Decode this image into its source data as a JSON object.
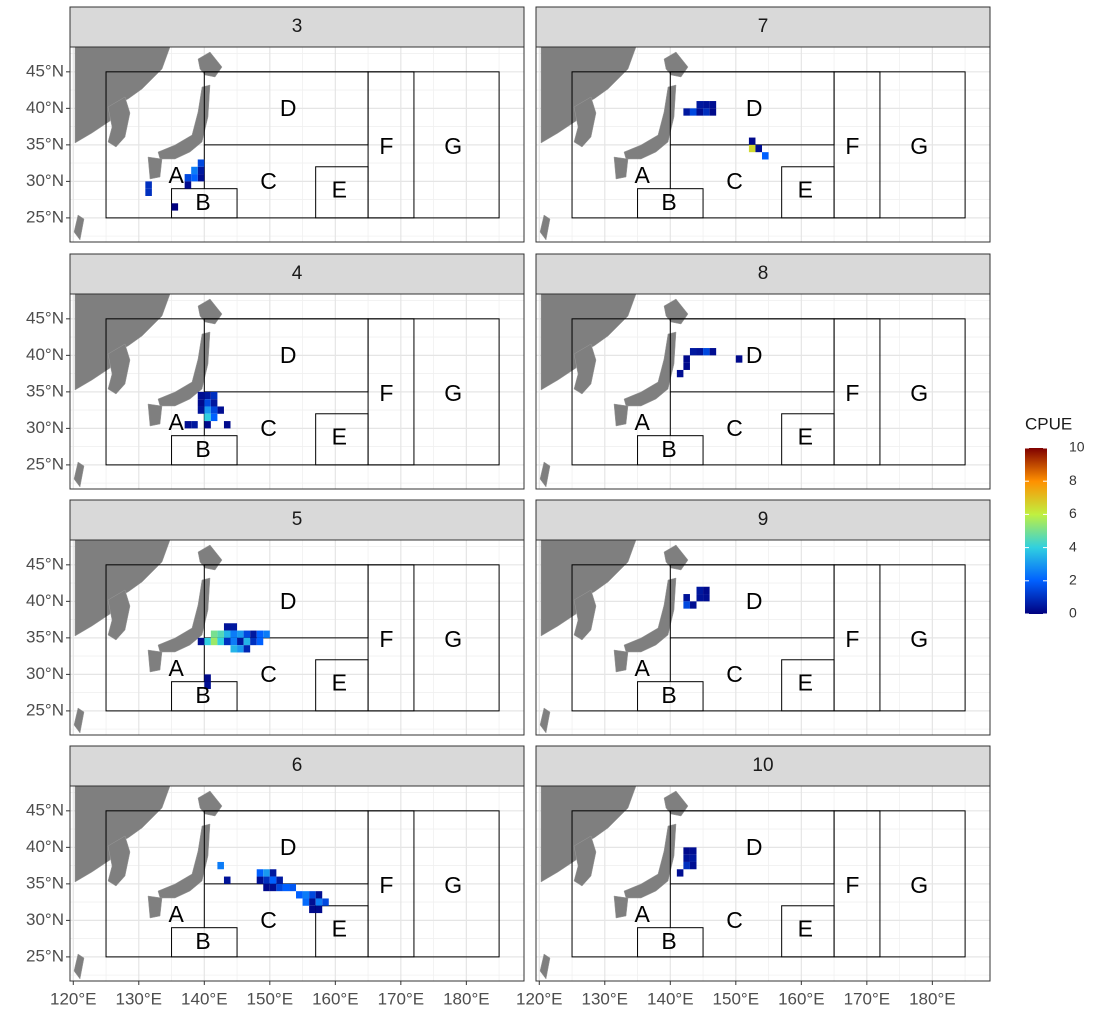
{
  "chart_data": {
    "type": "heatmap-map",
    "xlim": [
      119.5,
      188.8
    ],
    "ylim": [
      21.7,
      48.4
    ],
    "xticks": [
      {
        "value": 120,
        "label": "120°E"
      },
      {
        "value": 130,
        "label": "130°E"
      },
      {
        "value": 140,
        "label": "140°E"
      },
      {
        "value": 150,
        "label": "150°E"
      },
      {
        "value": 160,
        "label": "160°E"
      },
      {
        "value": 170,
        "label": "170°E"
      },
      {
        "value": 180,
        "label": "180°E"
      }
    ],
    "yticks": [
      {
        "value": 25,
        "label": "25°N"
      },
      {
        "value": 30,
        "label": "30°N"
      },
      {
        "value": 35,
        "label": "35°N"
      },
      {
        "value": 40,
        "label": "40°N"
      },
      {
        "value": 45,
        "label": "45°N"
      }
    ],
    "grid": true,
    "boundary_boxes": [
      [
        125,
        185,
        25,
        45
      ],
      [
        140,
        165,
        35,
        45
      ],
      [
        165,
        172,
        25,
        45
      ],
      [
        157,
        165,
        25,
        32
      ],
      [
        135,
        145,
        25,
        29
      ]
    ],
    "boundary_lines": [
      [
        140,
        29,
        140,
        35
      ]
    ],
    "region_labels": [
      {
        "label": "A",
        "lon": 135.7,
        "lat": 30.6
      },
      {
        "label": "B",
        "lon": 139.8,
        "lat": 26.9
      },
      {
        "label": "C",
        "lon": 149.8,
        "lat": 29.8
      },
      {
        "label": "D",
        "lon": 152.8,
        "lat": 39.8
      },
      {
        "label": "E",
        "lon": 160.6,
        "lat": 28.6
      },
      {
        "label": "F",
        "lon": 167.8,
        "lat": 34.6
      },
      {
        "label": "G",
        "lon": 178,
        "lat": 34.6
      }
    ],
    "legend": {
      "title": "CPUE",
      "clim": [
        0,
        10
      ],
      "ticks": [
        0,
        2,
        4,
        6,
        8,
        10
      ],
      "colorscale": [
        "#00007f",
        "#0060ff",
        "#30d0e0",
        "#c0f040",
        "#ff9000",
        "#7f0000"
      ]
    },
    "facets": [
      {
        "title": "3",
        "lon": [
          131,
          131,
          139,
          139,
          138,
          139,
          138,
          137,
          137,
          135
        ],
        "lat": [
          29,
          28,
          32,
          31,
          31,
          30,
          30,
          30,
          29,
          26
        ],
        "values": [
          1,
          1,
          1.5,
          0.5,
          2.5,
          0.3,
          2,
          1.5,
          0.2,
          0
        ]
      },
      {
        "title": "4",
        "lon": [
          139,
          140,
          141,
          139,
          140,
          141,
          142,
          140,
          141,
          139,
          140,
          141,
          137,
          138,
          143,
          140
        ],
        "lat": [
          34,
          34,
          34,
          33,
          33,
          33,
          32,
          32,
          32,
          32,
          31,
          31,
          30,
          30,
          30,
          30
        ],
        "values": [
          0.3,
          0.5,
          1,
          0.2,
          1.5,
          0.5,
          0.3,
          3,
          1.5,
          0.4,
          4,
          2,
          0.3,
          0.5,
          0.2,
          0.2
        ]
      },
      {
        "title": "5",
        "lon": [
          143,
          144,
          141,
          142,
          143,
          144,
          145,
          146,
          147,
          148,
          149,
          140,
          141,
          142,
          143,
          144,
          145,
          146,
          147,
          148,
          139,
          144,
          145,
          146,
          140,
          140
        ],
        "lat": [
          36,
          36,
          35,
          35,
          35,
          35,
          35,
          35,
          35,
          35,
          35,
          34,
          34,
          34,
          34,
          34,
          34,
          34,
          34,
          34,
          34,
          33,
          33,
          33,
          29,
          28
        ],
        "values": [
          0.4,
          0.5,
          5,
          4.5,
          3.5,
          2.5,
          3,
          1.5,
          0.5,
          2,
          2.5,
          4,
          5.5,
          4,
          1,
          2.5,
          0.5,
          3.5,
          1,
          2,
          0.3,
          3.5,
          3,
          0.8,
          0.2,
          0.3
        ]
      },
      {
        "title": "6",
        "lon": [
          142,
          143,
          148,
          149,
          150,
          148,
          149,
          150,
          151,
          149,
          150,
          151,
          152,
          153,
          154,
          155,
          156,
          157,
          155,
          156,
          157,
          158,
          156,
          157
        ],
        "lat": [
          37,
          35,
          36,
          36,
          36,
          35,
          35,
          35,
          35,
          34,
          34,
          34,
          34,
          34,
          33,
          33,
          33,
          33,
          32,
          32,
          32,
          32,
          31,
          31
        ],
        "values": [
          2.5,
          0.4,
          2,
          3,
          0.5,
          0.3,
          1,
          2,
          0.5,
          0.2,
          0.3,
          1.5,
          2,
          1.8,
          2,
          2.5,
          1.5,
          0.3,
          2.2,
          0.3,
          2.5,
          1.5,
          0.2,
          0.2
        ]
      },
      {
        "title": "7",
        "lon": [
          142,
          143,
          144,
          145,
          146,
          144,
          145,
          146,
          152,
          152,
          153,
          154
        ],
        "lat": [
          39,
          39,
          39,
          40,
          40,
          40,
          39,
          39,
          35,
          34,
          34,
          33
        ],
        "values": [
          0.5,
          1.5,
          0.3,
          0.4,
          0.3,
          0.5,
          1,
          0.2,
          0.2,
          6.5,
          0.3,
          2
        ]
      },
      {
        "title": "8",
        "lon": [
          142,
          143,
          144,
          145,
          146,
          142,
          141,
          150
        ],
        "lat": [
          39,
          40,
          40,
          40,
          40,
          38,
          37,
          39
        ],
        "values": [
          0.2,
          0.5,
          0.4,
          1.5,
          0.3,
          0.2,
          0.3,
          0.2
        ]
      },
      {
        "title": "9",
        "lon": [
          142,
          142,
          143,
          144,
          145,
          145,
          144
        ],
        "lat": [
          40,
          39,
          39,
          41,
          40,
          41,
          40
        ],
        "values": [
          0.4,
          1.5,
          0.3,
          0.5,
          0.3,
          0.2,
          0.4
        ]
      },
      {
        "title": "10",
        "lon": [
          142,
          143,
          142,
          143,
          142,
          143,
          141
        ],
        "lat": [
          39,
          39,
          38,
          38,
          37,
          37,
          36
        ],
        "values": [
          0.2,
          0.3,
          0.4,
          0.5,
          1,
          0.3,
          0.3
        ]
      }
    ]
  }
}
